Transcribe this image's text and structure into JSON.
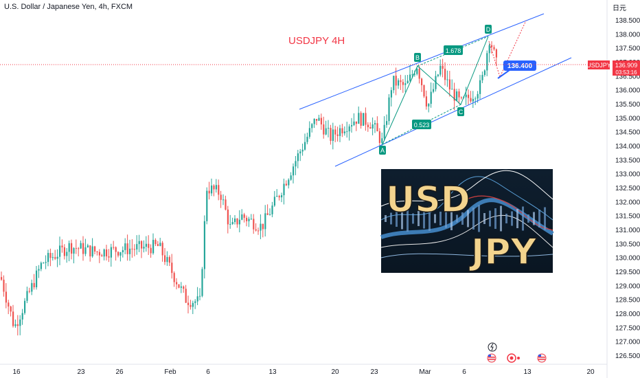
{
  "header": {
    "symbol_line": "U.S. Dollar / Japanese Yen, 4h, FXCM",
    "currency_glyph": "日元"
  },
  "chart_data": {
    "type": "candlestick",
    "title": "USDJPY 4H",
    "ylim": [
      126.25,
      138.75
    ],
    "y_ticks": [
      "126.500",
      "127.000",
      "127.500",
      "128.000",
      "128.500",
      "129.000",
      "129.500",
      "130.000",
      "130.500",
      "131.000",
      "131.500",
      "132.000",
      "132.500",
      "133.000",
      "133.500",
      "134.000",
      "134.500",
      "135.000",
      "135.500",
      "136.000",
      "136.500",
      "137.000",
      "137.500",
      "138.000",
      "138.500"
    ],
    "x_ticks": [
      "16",
      "23",
      "26",
      "Feb",
      "6",
      "13",
      "20",
      "23",
      "Mar",
      "6",
      "13",
      "20"
    ],
    "price_label": {
      "symbol": "USDJPY",
      "price": "136.909",
      "countdown": "03:53:16"
    },
    "target_label": "136.400",
    "pattern_points": [
      {
        "label": "A",
        "price": 134.1
      },
      {
        "label": "B",
        "price": 136.9
      },
      {
        "label": "C",
        "price": 135.5
      },
      {
        "label": "D",
        "price": 137.9
      }
    ],
    "ratios": [
      "0.523",
      "1.678"
    ],
    "overlay_text": [
      "USD",
      "JPY"
    ],
    "colors": {
      "up": "#26a69a",
      "down": "#ef5350",
      "channel": "#2962ff",
      "pattern": "#089981",
      "title": "#f23645",
      "target": "#2962ff"
    }
  }
}
